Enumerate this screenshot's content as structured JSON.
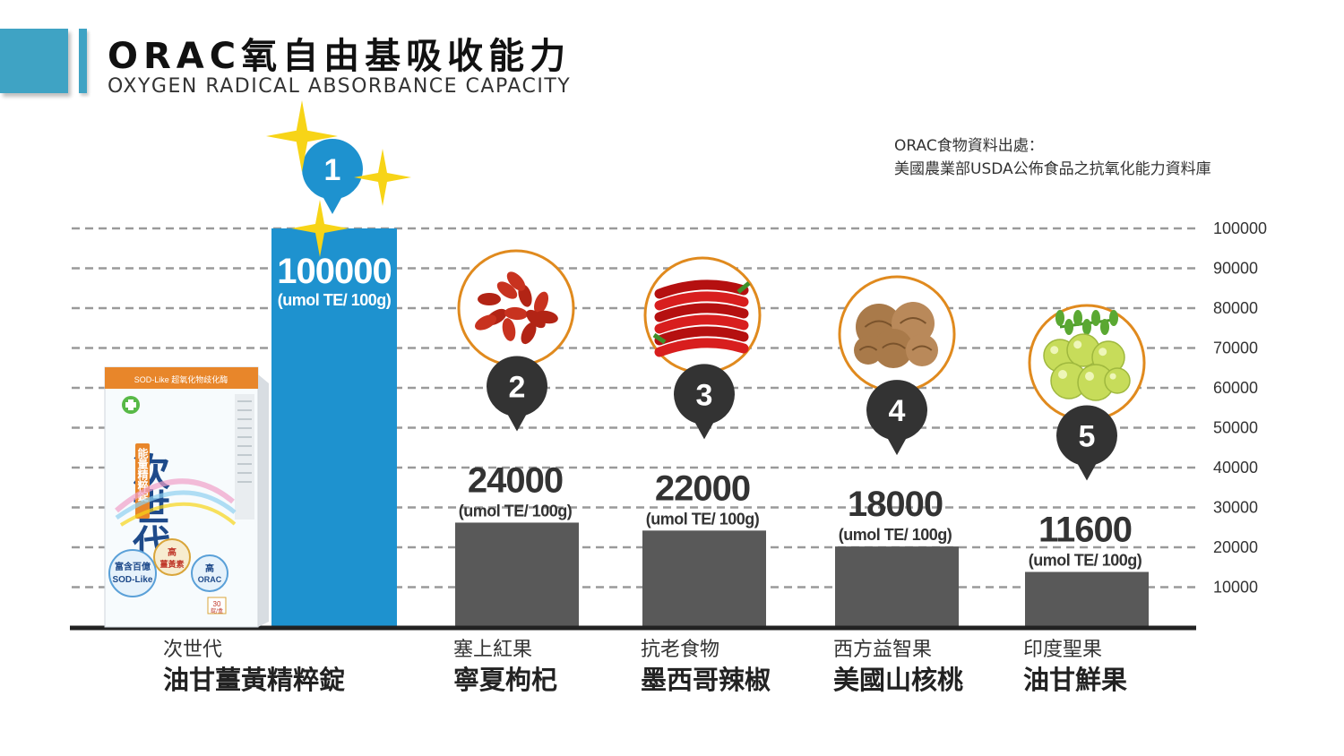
{
  "header": {
    "title": "ORAC氧自由基吸收能力",
    "subtitle": "OXYGEN RADICAL ABSORBANCE CAPACITY"
  },
  "source": {
    "line1": "ORAC食物資料出處：",
    "line2": "美國農業部USDA公佈食品之抗氧化能力資料庫"
  },
  "product_box": {
    "brand": "次世代",
    "tagline": "能量精粹錠",
    "band_text": "SOD-Like 超氧化物歧化酶",
    "badge1": "富含百億",
    "badge1b": "SOD-Like",
    "badge2": "高",
    "badge2b": "薑黃素",
    "badge3": "高",
    "badge3b": "ORAC",
    "count": "30",
    "count_unit": "錠/盒"
  },
  "colors": {
    "accent": "#3fa3c4",
    "highlight_bar": "#1e92cf",
    "bar": "#595959",
    "marker_blue": "#1e92cf",
    "marker_dark": "#333333",
    "ring": "#e08a1e",
    "star": "#f7d417"
  },
  "chart_data": {
    "type": "bar",
    "unit": "(umol TE/ 100g)",
    "ylim": [
      0,
      100000
    ],
    "yticks": [
      "100000",
      "90000",
      "80000",
      "70000",
      "60000",
      "50000",
      "40000",
      "30000",
      "20000",
      "10000"
    ],
    "grid": "dashed",
    "items": [
      {
        "rank": "1",
        "value": 100000,
        "value_label": "100000",
        "sub": "次世代",
        "main": "油甘薑黃精粹錠",
        "highlight": true,
        "image": "product-box"
      },
      {
        "rank": "2",
        "value": 24000,
        "value_label": "24000",
        "sub": "塞上紅果",
        "main": "寧夏枸杞",
        "image": "goji-berries-icon"
      },
      {
        "rank": "3",
        "value": 22000,
        "value_label": "22000",
        "sub": "抗老食物",
        "main": "墨西哥辣椒",
        "image": "chili-peppers-icon"
      },
      {
        "rank": "4",
        "value": 18000,
        "value_label": "18000",
        "sub": "西方益智果",
        "main": "美國山核桃",
        "image": "walnuts-icon"
      },
      {
        "rank": "5",
        "value": 11600,
        "value_label": "11600",
        "sub": "印度聖果",
        "main": "油甘鮮果",
        "image": "amla-fruit-icon"
      }
    ]
  }
}
